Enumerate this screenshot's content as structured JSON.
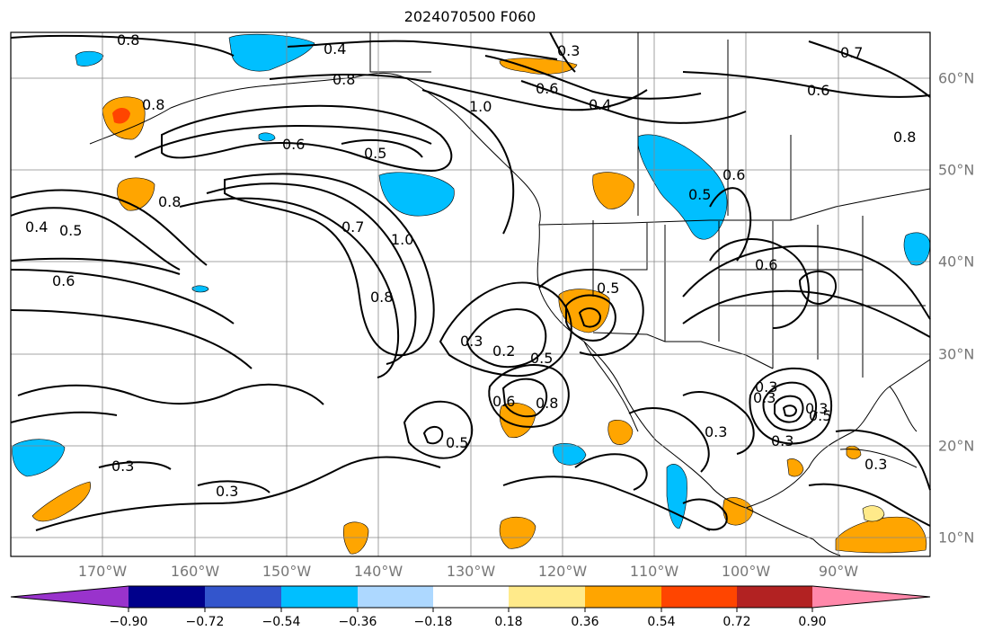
{
  "title": "2024070500 F060",
  "map": {
    "projection": "plate-carree",
    "lon_range": [
      -180,
      -80
    ],
    "lat_range": [
      8,
      65
    ],
    "lon_ticks": [
      "170°W",
      "160°W",
      "150°W",
      "140°W",
      "130°W",
      "120°W",
      "110°W",
      "100°W",
      "90°W"
    ],
    "lat_ticks": [
      "60°N",
      "50°N",
      "40°N",
      "30°N",
      "20°N",
      "10°N"
    ],
    "grid": true,
    "contour_color": "#000000",
    "contour_labels": [
      "0.8",
      "0.4",
      "0.3",
      "0.7",
      "0.8",
      "0.6",
      "0.4",
      "0.6",
      "0.8",
      "1.0",
      "0.8",
      "0.6",
      "0.5",
      "0.8",
      "0.4",
      "0.5",
      "0.6",
      "0.7",
      "1.0",
      "0.8",
      "0.5",
      "0.5",
      "0.6",
      "0.6",
      "0.3",
      "0.2",
      "0.5",
      "0.6",
      "0.8",
      "0.5",
      "0.3",
      "0.3",
      "0.3",
      "0.3",
      "0.5",
      "0.3",
      "0.3",
      "0.3",
      "0.3"
    ]
  },
  "colorbar": {
    "levels": [
      "−0.90",
      "−0.72",
      "−0.54",
      "−0.36",
      "−0.18",
      "0.18",
      "0.36",
      "0.54",
      "0.72",
      "0.90"
    ],
    "colors": [
      "#9933cc",
      "#00008b",
      "#3355cc",
      "#00bfff",
      "#add8ff",
      "#ffffff",
      "#ffea8a",
      "#ffa500",
      "#ff4500",
      "#b22222",
      "#ff88aa"
    ]
  }
}
